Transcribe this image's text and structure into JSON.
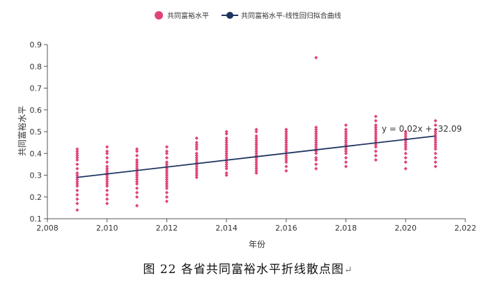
{
  "caption": {
    "text": "图 22   各省共同富裕水平折线散点图",
    "return_mark": "↵"
  },
  "chart_data": {
    "type": "scatter",
    "xlabel": "年份",
    "ylabel": "共同富裕水平",
    "xlim": [
      2008,
      2022
    ],
    "ylim": [
      0.1,
      0.9
    ],
    "x_ticks": [
      "2,008",
      "2,010",
      "2,012",
      "2,014",
      "2,016",
      "2,018",
      "2,020",
      "2,022"
    ],
    "y_ticks": [
      "0.1",
      "0.2",
      "0.3",
      "0.4",
      "0.5",
      "0.6",
      "0.7",
      "0.8",
      "0.9"
    ],
    "legend_position": "top-center",
    "colors": {
      "scatter": "#e0447a",
      "line": "#1f3560",
      "axis": "#555555"
    },
    "series": [
      {
        "name": "共同富裕水平",
        "kind": "scatter",
        "points": [
          {
            "x": 2009,
            "values": [
              0.14,
              0.17,
              0.19,
              0.21,
              0.23,
              0.25,
              0.26,
              0.27,
              0.28,
              0.29,
              0.3,
              0.31,
              0.33,
              0.35,
              0.37,
              0.38,
              0.39,
              0.4,
              0.41,
              0.42
            ]
          },
          {
            "x": 2010,
            "values": [
              0.17,
              0.19,
              0.21,
              0.23,
              0.25,
              0.26,
              0.27,
              0.28,
              0.29,
              0.3,
              0.31,
              0.32,
              0.33,
              0.34,
              0.36,
              0.38,
              0.4,
              0.41,
              0.43
            ]
          },
          {
            "x": 2011,
            "values": [
              0.16,
              0.2,
              0.22,
              0.24,
              0.26,
              0.27,
              0.28,
              0.29,
              0.3,
              0.31,
              0.32,
              0.33,
              0.34,
              0.35,
              0.36,
              0.37,
              0.39,
              0.41,
              0.42
            ]
          },
          {
            "x": 2012,
            "values": [
              0.18,
              0.2,
              0.22,
              0.24,
              0.25,
              0.26,
              0.27,
              0.28,
              0.29,
              0.3,
              0.31,
              0.32,
              0.33,
              0.34,
              0.35,
              0.36,
              0.38,
              0.4,
              0.41,
              0.43
            ]
          },
          {
            "x": 2013,
            "values": [
              0.29,
              0.3,
              0.31,
              0.32,
              0.33,
              0.34,
              0.35,
              0.36,
              0.37,
              0.38,
              0.39,
              0.4,
              0.42,
              0.43,
              0.44,
              0.45,
              0.47
            ]
          },
          {
            "x": 2014,
            "values": [
              0.3,
              0.31,
              0.33,
              0.34,
              0.35,
              0.36,
              0.37,
              0.38,
              0.39,
              0.4,
              0.41,
              0.42,
              0.43,
              0.44,
              0.45,
              0.46,
              0.47,
              0.49,
              0.5
            ]
          },
          {
            "x": 2015,
            "values": [
              0.31,
              0.32,
              0.33,
              0.34,
              0.35,
              0.36,
              0.37,
              0.38,
              0.39,
              0.4,
              0.41,
              0.42,
              0.43,
              0.44,
              0.45,
              0.46,
              0.47,
              0.48,
              0.5,
              0.51
            ]
          },
          {
            "x": 2016,
            "values": [
              0.32,
              0.34,
              0.36,
              0.37,
              0.38,
              0.39,
              0.4,
              0.41,
              0.42,
              0.43,
              0.44,
              0.45,
              0.46,
              0.47,
              0.48,
              0.49,
              0.5,
              0.51
            ]
          },
          {
            "x": 2017,
            "values": [
              0.33,
              0.35,
              0.37,
              0.38,
              0.4,
              0.41,
              0.42,
              0.43,
              0.44,
              0.45,
              0.46,
              0.47,
              0.48,
              0.49,
              0.5,
              0.51,
              0.52,
              0.84
            ]
          },
          {
            "x": 2018,
            "values": [
              0.34,
              0.36,
              0.38,
              0.4,
              0.41,
              0.42,
              0.43,
              0.44,
              0.45,
              0.46,
              0.47,
              0.48,
              0.49,
              0.5,
              0.51,
              0.53
            ]
          },
          {
            "x": 2019,
            "values": [
              0.37,
              0.39,
              0.41,
              0.43,
              0.44,
              0.45,
              0.46,
              0.47,
              0.48,
              0.49,
              0.5,
              0.51,
              0.52,
              0.53,
              0.55,
              0.57
            ]
          },
          {
            "x": 2020,
            "values": [
              0.33,
              0.36,
              0.38,
              0.4,
              0.42,
              0.43,
              0.44,
              0.45,
              0.46,
              0.47,
              0.48,
              0.49,
              0.5
            ]
          },
          {
            "x": 2021,
            "values": [
              0.34,
              0.36,
              0.38,
              0.4,
              0.42,
              0.43,
              0.44,
              0.45,
              0.46,
              0.47,
              0.48,
              0.49,
              0.5,
              0.51,
              0.53,
              0.55
            ]
          }
        ]
      },
      {
        "name": "共同富裕水平-线性回归拟合曲线",
        "kind": "line",
        "points": [
          [
            2009,
            0.29
          ],
          [
            2021,
            0.48
          ]
        ]
      }
    ],
    "annotations": [
      {
        "text": "y = 0.02x + -32.09",
        "x": 2019.7,
        "y": 0.5
      }
    ]
  }
}
